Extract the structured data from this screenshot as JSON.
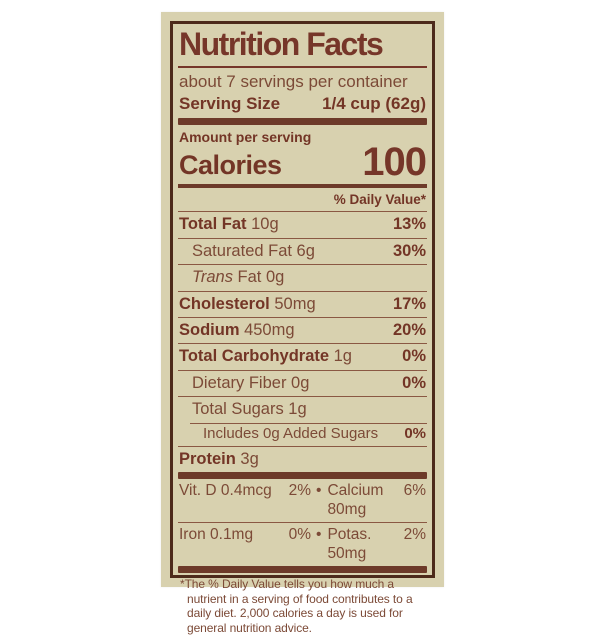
{
  "label": {
    "title": "Nutrition Facts",
    "servings_text": "about 7 servings per container",
    "serving_size": {
      "label": "Serving Size",
      "value": "1/4 cup (62g)"
    },
    "amount_per_serving": "Amount per serving",
    "calories": {
      "label": "Calories",
      "value": "100"
    },
    "daily_value_header": "% Daily Value*",
    "rows": [
      {
        "strong": "Total Fat",
        "italic": "",
        "text": " 10g",
        "dv": "13%"
      },
      {
        "strong": "",
        "italic": "",
        "text": "Saturated Fat 6g",
        "dv": "30%"
      },
      {
        "strong": "",
        "italic": "Trans",
        "text": " Fat 0g",
        "dv": ""
      },
      {
        "strong": "Cholesterol",
        "italic": "",
        "text": " 50mg",
        "dv": "17%"
      },
      {
        "strong": "Sodium",
        "italic": "",
        "text": " 450mg",
        "dv": "20%"
      },
      {
        "strong": "Total Carbohydrate",
        "italic": "",
        "text": " 1g",
        "dv": "0%"
      },
      {
        "strong": "",
        "italic": "",
        "text": "Dietary Fiber 0g",
        "dv": "0%"
      },
      {
        "strong": "",
        "italic": "",
        "text": "Total Sugars 1g",
        "dv": ""
      },
      {
        "strong": "",
        "italic": "",
        "text": "Includes 0g Added Sugars",
        "dv": "0%"
      },
      {
        "strong": "Protein",
        "italic": "",
        "text": " 3g",
        "dv": ""
      }
    ],
    "micronutrients": {
      "separator": "•",
      "rows": [
        {
          "left_name": "Vit. D 0.4mcg",
          "left_dv": "2%",
          "right_name": "Calcium 80mg",
          "right_dv": "6%"
        },
        {
          "left_name": "Iron 0.1mg",
          "left_dv": "0%",
          "right_name": "Potas. 50mg",
          "right_dv": "2%"
        }
      ]
    },
    "footnote": "*The % Daily Value tells you how much a nutrient in a serving of food contributes to a daily diet. 2,000 calories a day is used for general nutrition advice.",
    "colors": {
      "label_background": "#d8d1af",
      "text_regular": "#7c4a37",
      "text_bold": "#733526",
      "border": "#4d2a1b",
      "bar": "#6d3a29",
      "page_background": "#ffffff"
    }
  }
}
